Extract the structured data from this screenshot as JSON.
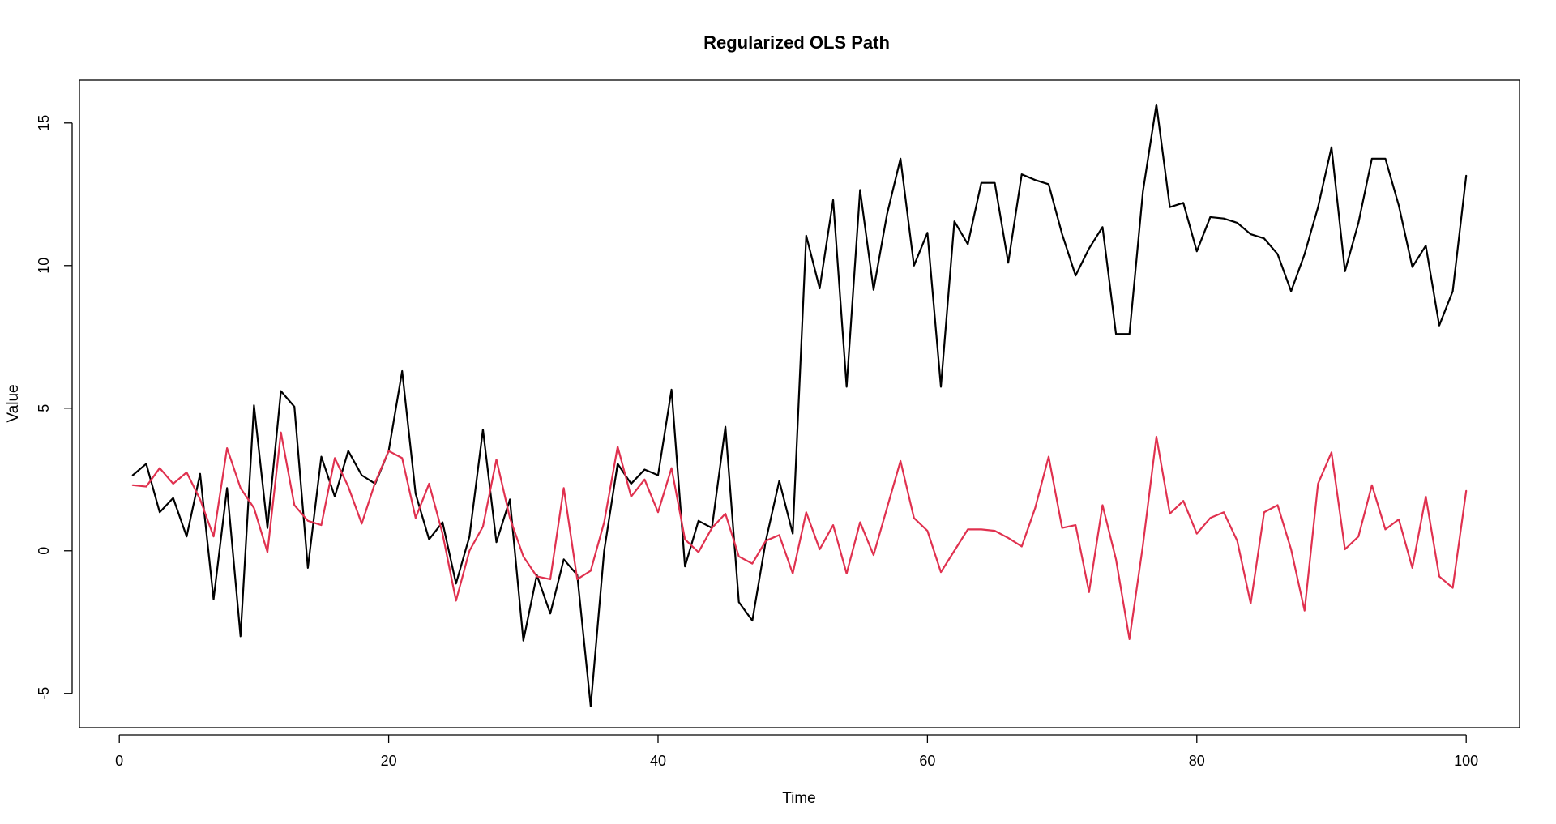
{
  "chart_data": {
    "type": "line",
    "title": "Regularized OLS Path",
    "xlabel": "Time",
    "ylabel": "Value",
    "xlim": [
      -2.96,
      103.96
    ],
    "ylim": [
      -6.2,
      16.5
    ],
    "x_ticks": [
      0,
      20,
      40,
      60,
      80,
      100
    ],
    "y_ticks": [
      -5,
      0,
      5,
      10,
      15
    ],
    "grid": false,
    "legend": "none",
    "x": [
      1,
      2,
      3,
      4,
      5,
      6,
      7,
      8,
      9,
      10,
      11,
      12,
      13,
      14,
      15,
      16,
      17,
      18,
      19,
      20,
      21,
      22,
      23,
      24,
      25,
      26,
      27,
      28,
      29,
      30,
      31,
      32,
      33,
      34,
      35,
      36,
      37,
      38,
      39,
      40,
      41,
      42,
      43,
      44,
      45,
      46,
      47,
      48,
      49,
      50,
      51,
      52,
      53,
      54,
      55,
      56,
      57,
      58,
      59,
      60,
      61,
      62,
      63,
      64,
      65,
      66,
      67,
      68,
      69,
      70,
      71,
      72,
      73,
      74,
      75,
      76,
      77,
      78,
      79,
      80,
      81,
      82,
      83,
      84,
      85,
      86,
      87,
      88,
      89,
      90,
      91,
      92,
      93,
      94,
      95,
      96,
      97,
      98,
      99,
      100
    ],
    "series": [
      {
        "color": "#000000",
        "values": [
          2.65,
          3.05,
          1.35,
          1.85,
          0.5,
          2.7,
          -1.7,
          2.2,
          -3.0,
          5.1,
          0.8,
          5.6,
          5.05,
          -0.6,
          3.3,
          1.9,
          3.5,
          2.65,
          2.35,
          3.5,
          6.3,
          2.0,
          0.4,
          1.0,
          -1.15,
          0.5,
          4.25,
          0.3,
          1.8,
          -3.15,
          -0.85,
          -2.2,
          -0.3,
          -0.85,
          -5.45,
          0.0,
          3.05,
          2.35,
          2.85,
          2.65,
          5.65,
          -0.55,
          1.05,
          0.8,
          4.35,
          -1.8,
          -2.45,
          0.35,
          2.45,
          0.6,
          11.05,
          9.2,
          12.3,
          5.75,
          12.65,
          9.15,
          11.8,
          13.75,
          10.0,
          11.15,
          5.75,
          11.55,
          10.75,
          12.9,
          12.9,
          10.1,
          13.2,
          13.0,
          12.85,
          11.1,
          9.65,
          10.6,
          11.35,
          7.6,
          7.6,
          12.6,
          15.65,
          12.05,
          12.2,
          10.5,
          11.7,
          11.65,
          11.5,
          11.1,
          10.95,
          10.4,
          9.1,
          10.4,
          12.05,
          14.15,
          9.8,
          11.5,
          13.75,
          13.75,
          12.1,
          9.95,
          10.7,
          7.9,
          9.1,
          13.15
        ]
      },
      {
        "color": "#e0314f",
        "values": [
          2.3,
          2.25,
          2.9,
          2.35,
          2.75,
          1.8,
          0.5,
          3.6,
          2.2,
          1.5,
          -0.05,
          4.15,
          1.6,
          1.05,
          0.9,
          3.25,
          2.25,
          0.95,
          2.4,
          3.5,
          3.25,
          1.15,
          2.35,
          0.6,
          -1.75,
          0.0,
          0.85,
          3.2,
          1.15,
          -0.2,
          -0.9,
          -1.0,
          2.2,
          -1.0,
          -0.7,
          1.0,
          3.65,
          1.9,
          2.5,
          1.35,
          2.9,
          0.4,
          -0.05,
          0.8,
          1.3,
          -0.2,
          -0.45,
          0.35,
          0.55,
          -0.8,
          1.35,
          0.05,
          0.9,
          -0.8,
          1.0,
          -0.15,
          1.5,
          3.15,
          1.15,
          0.7,
          -0.75,
          0.0,
          0.75,
          0.75,
          0.7,
          0.45,
          0.15,
          1.5,
          3.3,
          0.8,
          0.9,
          -1.45,
          1.6,
          -0.3,
          -3.1,
          0.2,
          4.0,
          1.3,
          1.75,
          0.6,
          1.15,
          1.35,
          0.35,
          -1.85,
          1.35,
          1.6,
          0.05,
          -2.1,
          2.35,
          3.45,
          0.05,
          0.5,
          2.3,
          0.75,
          1.1,
          -0.6,
          1.9,
          -0.9,
          -1.3,
          2.1
        ]
      }
    ]
  }
}
